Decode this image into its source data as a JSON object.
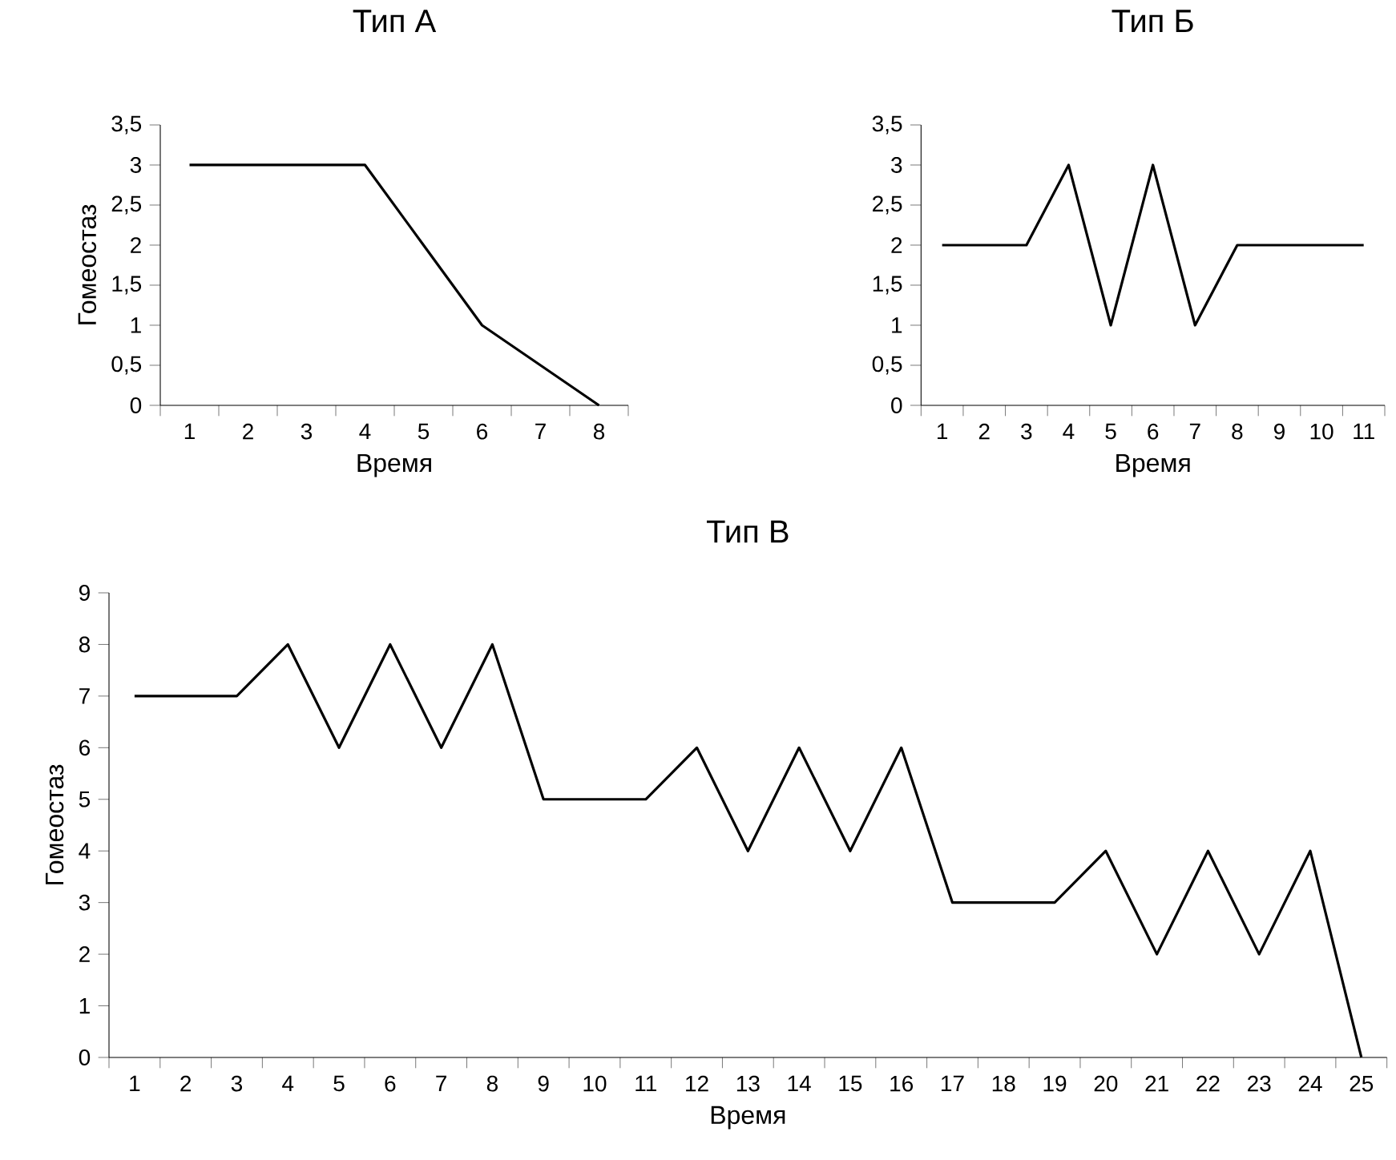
{
  "chart_data": [
    {
      "type": "line",
      "title": "Тип А",
      "xlabel": "Время",
      "ylabel": "Гомеостаз",
      "color": "#000000",
      "categories": [
        "1",
        "2",
        "3",
        "4",
        "5",
        "6",
        "7",
        "8"
      ],
      "values": [
        3,
        3,
        3,
        3,
        2,
        1,
        0.5,
        0
      ],
      "ylim": [
        0,
        3.5
      ],
      "yticks": [
        0,
        {
          "value": 0.5,
          "label": "0,5"
        },
        1,
        {
          "value": 1.5,
          "label": "1,5"
        },
        2,
        {
          "value": 2.5,
          "label": "2,5"
        },
        3,
        {
          "value": 3.5,
          "label": "3,5"
        }
      ]
    },
    {
      "type": "line",
      "title": "Тип Б",
      "xlabel": "Время",
      "color": "#000000",
      "categories": [
        "1",
        "2",
        "3",
        "4",
        "5",
        "6",
        "7",
        "8",
        "9",
        "10",
        "11"
      ],
      "values": [
        2,
        2,
        2,
        3,
        1,
        3,
        1,
        2,
        2,
        2,
        2
      ],
      "ylim": [
        0,
        3.5
      ],
      "yticks": [
        0,
        {
          "value": 0.5,
          "label": "0,5"
        },
        1,
        {
          "value": 1.5,
          "label": "1,5"
        },
        2,
        {
          "value": 2.5,
          "label": "2,5"
        },
        3,
        {
          "value": 3.5,
          "label": "3,5"
        }
      ]
    },
    {
      "type": "line",
      "title": "Тип В",
      "xlabel": "Время",
      "ylabel": "Гомеостаз",
      "color": "#000000",
      "categories": [
        "1",
        "2",
        "3",
        "4",
        "5",
        "6",
        "7",
        "8",
        "9",
        "10",
        "11",
        "12",
        "13",
        "14",
        "15",
        "16",
        "17",
        "18",
        "19",
        "20",
        "21",
        "22",
        "23",
        "24",
        "25"
      ],
      "values": [
        7,
        7,
        7,
        8,
        6,
        8,
        6,
        8,
        5,
        5,
        5,
        6,
        4,
        6,
        4,
        6,
        3,
        3,
        3,
        4,
        2,
        4,
        2,
        4,
        0
      ],
      "ylim": [
        0,
        9
      ],
      "yticks": [
        0,
        1,
        2,
        3,
        4,
        5,
        6,
        7,
        8,
        9
      ]
    }
  ]
}
